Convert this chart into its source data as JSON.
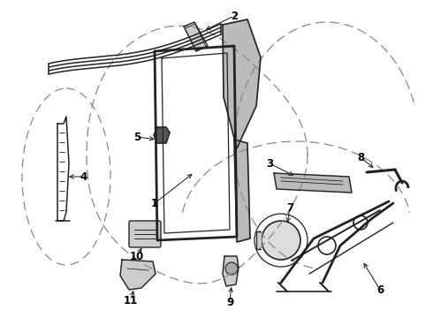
{
  "bg_color": "#ffffff",
  "lc": "#222222",
  "dc": "#888888",
  "figsize": [
    4.9,
    3.6
  ],
  "dpi": 100,
  "xlim": [
    0,
    490
  ],
  "ylim": [
    0,
    360
  ]
}
